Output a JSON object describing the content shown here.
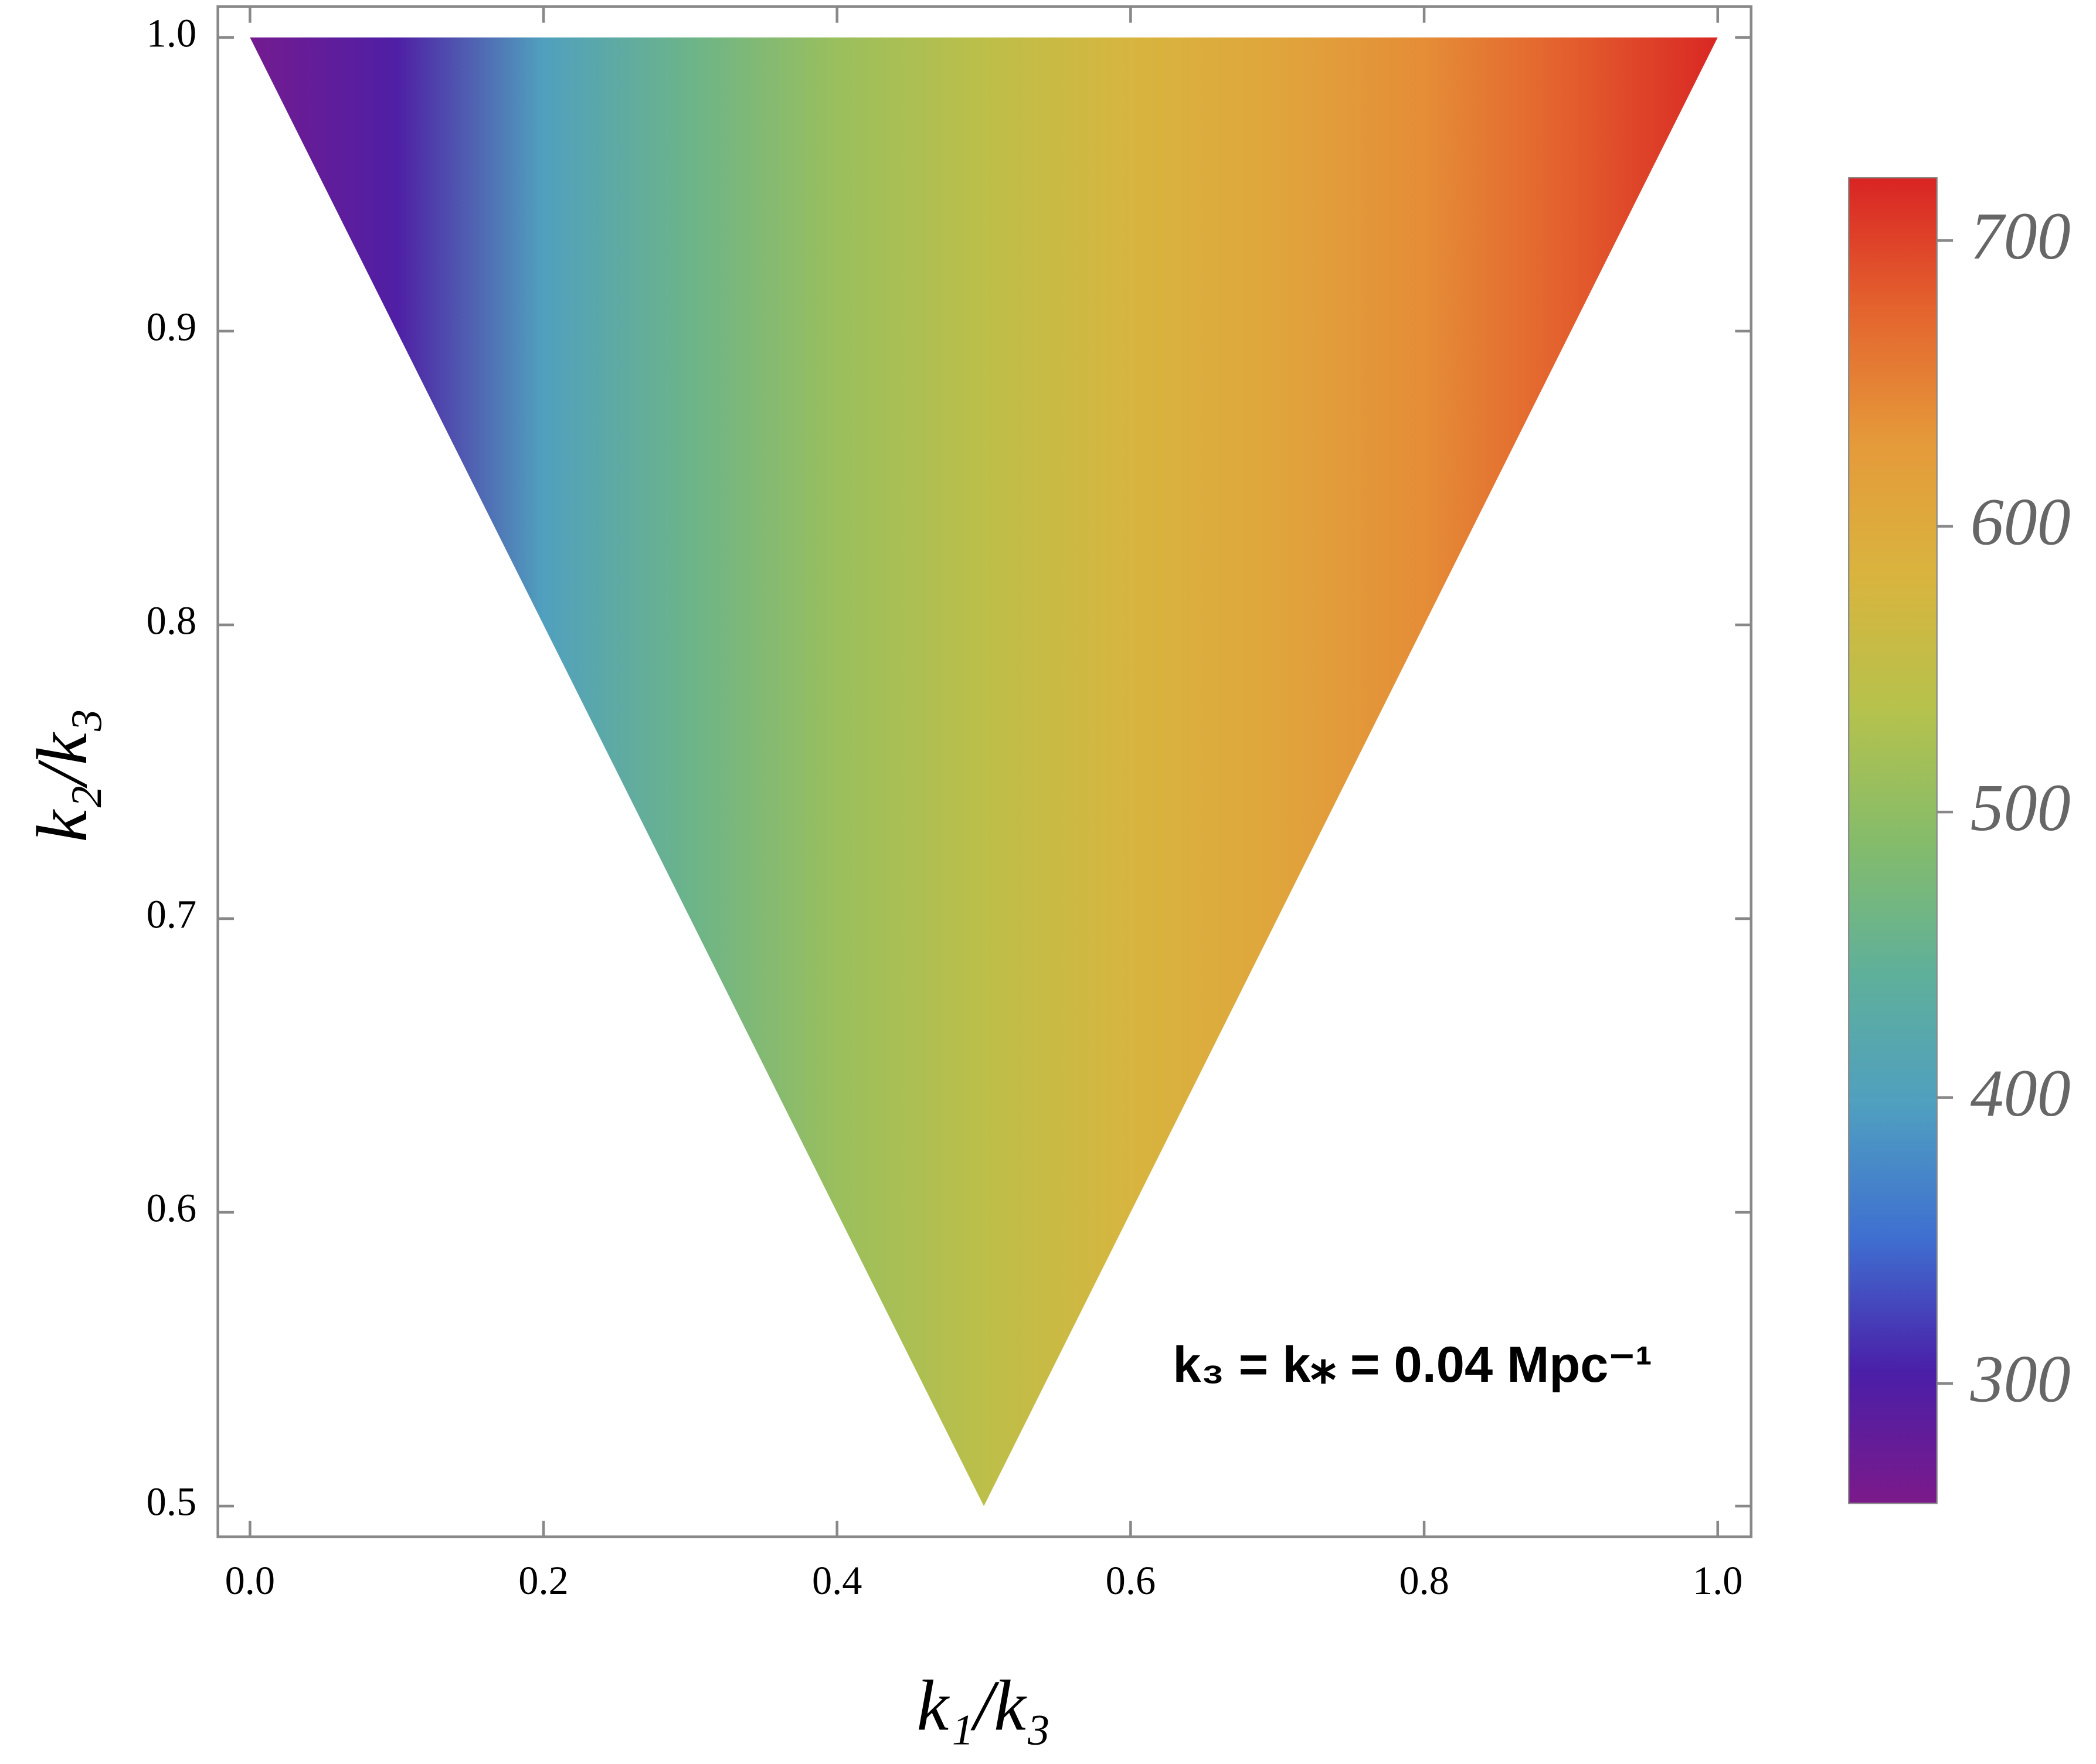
{
  "chart_data": {
    "type": "triangle-density",
    "x_label": "k₁/k₃",
    "y_label": "k₂/k₃",
    "annotation": "k₃ = k⁎ = 0.04 Mpc⁻¹",
    "xlim": [
      0,
      1
    ],
    "ylim": [
      0.5,
      1
    ],
    "xticks": [
      {
        "value": 0,
        "label": "0.0"
      },
      0.2,
      0.4,
      0.6,
      0.8,
      {
        "value": 1,
        "label": "1.0"
      }
    ],
    "yticks": [
      0.5,
      0.6,
      0.7,
      0.8,
      0.9,
      {
        "value": 1,
        "label": "1.0"
      }
    ],
    "region": {
      "x": [
        0,
        1,
        0.5
      ],
      "y": [
        1,
        1,
        0.5
      ]
    },
    "field": {
      "x": [
        0,
        0.1,
        0.2,
        0.3,
        0.4,
        0.5,
        0.6,
        0.7,
        0.8,
        0.9,
        1
      ],
      "values": [
        265,
        300,
        400,
        460,
        510,
        545,
        580,
        610,
        640,
        680,
        720
      ]
    },
    "colorbar": {
      "lim": [
        258,
        722
      ],
      "ticks": [
        300,
        400,
        500,
        600,
        700
      ],
      "colors": [
        "#7b1a8a",
        "#4a1fa8",
        "#3f6fd0",
        "#4f9fc0",
        "#5fb09a",
        "#85bc6a",
        "#b6c24c",
        "#d9b43e",
        "#e59a3a",
        "#e4642e",
        "#d92424"
      ]
    }
  }
}
